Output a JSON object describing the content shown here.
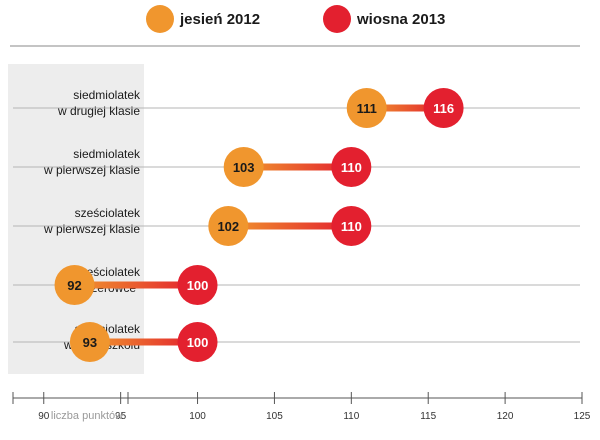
{
  "chart_data": {
    "type": "dumbbell",
    "xlabel": "liczba punktów",
    "xlim": [
      88,
      125
    ],
    "xticks": [
      90,
      95,
      100,
      105,
      110,
      115,
      120,
      125
    ],
    "grid": false,
    "legend_position": "top-center",
    "series": [
      {
        "name": "jesień 2012",
        "color": "#f0962e"
      },
      {
        "name": "wiosna 2013",
        "color": "#e3202f"
      }
    ],
    "categories": [
      {
        "line1": "siedmiolatek",
        "line2": "w drugiej klasie",
        "values": [
          111,
          116
        ]
      },
      {
        "line1": "siedmiolatek",
        "line2": "w pierwszej klasie",
        "values": [
          103,
          110
        ]
      },
      {
        "line1": "sześciolatek",
        "line2": "w pierwszej klasie",
        "values": [
          102,
          110
        ]
      },
      {
        "line1": "sześciolatek",
        "line2": "w „zerówce”",
        "values": [
          92,
          100
        ]
      },
      {
        "line1": "sześciolatek",
        "line2": "w przedszkolu",
        "values": [
          93,
          100
        ]
      }
    ]
  }
}
